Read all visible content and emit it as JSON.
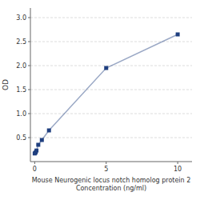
{
  "chart_data": {
    "type": "line",
    "x_label": "Mouse Neurogenic locus notch homolog protein 2\nConcentration (ng/ml)",
    "y_label": "OD",
    "x": [
      0,
      0.0625,
      0.125,
      0.25,
      0.5,
      1,
      5,
      10
    ],
    "values": [
      0.17,
      0.19,
      0.23,
      0.35,
      0.45,
      0.65,
      1.95,
      2.65
    ],
    "color": "#1F3F7F",
    "marker": "square",
    "xlim": [
      -0.3,
      11
    ],
    "ylim": [
      0,
      3.2
    ],
    "xticks": [
      0,
      5,
      10
    ],
    "yticks": [
      0.5,
      {
        "value": 1.0,
        "label": "1.0"
      },
      1.5,
      {
        "value": 2.0,
        "label": "2.0"
      },
      2.5,
      {
        "value": 3.0,
        "label": "3.0"
      }
    ],
    "grid": true
  }
}
